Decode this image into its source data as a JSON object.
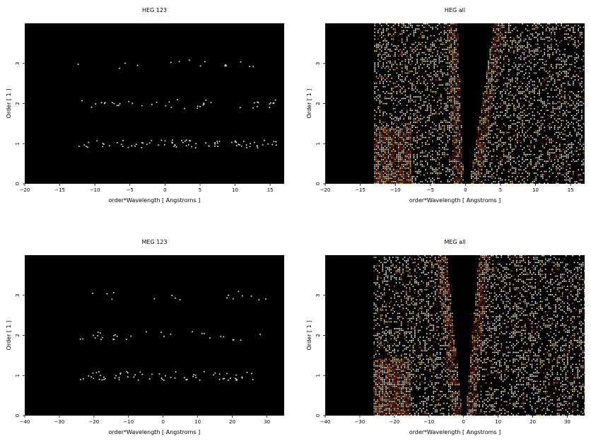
{
  "chart_data": [
    {
      "type": "heatmap",
      "title": "HEG 123",
      "xlabel": "order*Wavelength [ Angstroms ]",
      "ylabel": "Order [ 1 ]",
      "xlim": [
        -20,
        17
      ],
      "ylim": [
        0,
        4
      ],
      "xticks": [
        -20,
        -15,
        -10,
        -5,
        0,
        5,
        10,
        15
      ],
      "yticks": [
        0,
        1,
        2,
        3
      ],
      "colormap": "black-red-yellow-white",
      "background": "#000000",
      "description_data": {
        "bands": [
          {
            "order": 1,
            "x_range": [
              -12.5,
              16
            ],
            "density": 0.55
          },
          {
            "order": 2,
            "x_range": [
              -12.5,
              16
            ],
            "density": 0.25
          },
          {
            "order": 3,
            "x_range": [
              -12.5,
              14
            ],
            "density": 0.12
          }
        ]
      }
    },
    {
      "type": "heatmap",
      "title": "HEG all",
      "xlabel": "order*Wavelength [ Angstroms ]",
      "ylabel": "Order [ 1 ]",
      "xlim": [
        -20,
        17
      ],
      "ylim": [
        0,
        4
      ],
      "xticks": [
        -20,
        -15,
        -10,
        -5,
        0,
        5,
        10,
        15
      ],
      "yticks": [
        0,
        1,
        2,
        3
      ],
      "colormap": "black-red-yellow-white",
      "background": "#000000",
      "description_data": {
        "data_x_range": [
          -13,
          17
        ],
        "empty_wedge_top": [
          -1.2,
          4.0
        ],
        "empty_wedge_bottom": [
          -0.3,
          0.5
        ]
      }
    },
    {
      "type": "heatmap",
      "title": "MEG 123",
      "xlabel": "order*Wavelength [ Angstroms ]",
      "ylabel": "Order [ 1 ]",
      "xlim": [
        -40,
        35
      ],
      "ylim": [
        0,
        4
      ],
      "xticks": [
        -40,
        -30,
        -20,
        -10,
        0,
        10,
        20,
        30
      ],
      "yticks": [
        0,
        1,
        2,
        3
      ],
      "colormap": "black-red-yellow-white",
      "background": "#000000",
      "description_data": {
        "bands": [
          {
            "order": 1,
            "x_range": [
              -25,
              26
            ],
            "density": 0.5
          },
          {
            "order": 2,
            "x_range": [
              -25,
              28
            ],
            "density": 0.2
          },
          {
            "order": 3,
            "x_range": [
              -25,
              30
            ],
            "density": 0.12
          }
        ]
      }
    },
    {
      "type": "heatmap",
      "title": "MEG all",
      "xlabel": "order*Wavelength [ Angstroms ]",
      "ylabel": "Order [ 1 ]",
      "xlim": [
        -40,
        35
      ],
      "ylim": [
        0,
        4
      ],
      "xticks": [
        -40,
        -30,
        -20,
        -10,
        0,
        10,
        20,
        30
      ],
      "yticks": [
        0,
        1,
        2,
        3
      ],
      "colormap": "black-red-yellow-white",
      "background": "#000000",
      "description_data": {
        "data_x_range": [
          -26,
          35
        ],
        "empty_wedge_top": [
          -5,
          4.2
        ],
        "empty_wedge_bottom": [
          -0.5,
          0.5
        ]
      }
    }
  ]
}
